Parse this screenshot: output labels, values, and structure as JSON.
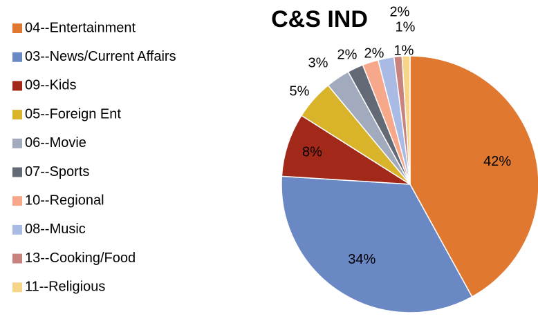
{
  "chart_data": {
    "type": "pie",
    "title": "C&S IND",
    "categories": [
      "04--Entertainment",
      "03--News/Current Affairs",
      "09--Kids",
      "05--Foreign Ent",
      "06--Movie",
      "07--Sports",
      "10--Regional",
      "08--Music",
      "13--Cooking/Food",
      "11--Religious"
    ],
    "values": [
      42,
      34,
      8,
      5,
      3,
      2,
      2,
      2,
      1,
      1
    ],
    "value_labels": [
      "42%",
      "34%",
      "8%",
      "5%",
      "3%",
      "2%",
      "2%",
      "2%",
      "1%",
      "1%"
    ],
    "colors": [
      "#e07830",
      "#6a88c4",
      "#a2291a",
      "#d9b42a",
      "#a2aabd",
      "#636a75",
      "#f8a88a",
      "#a9bbe4",
      "#c8837e",
      "#f6d588"
    ],
    "legend": "left"
  }
}
